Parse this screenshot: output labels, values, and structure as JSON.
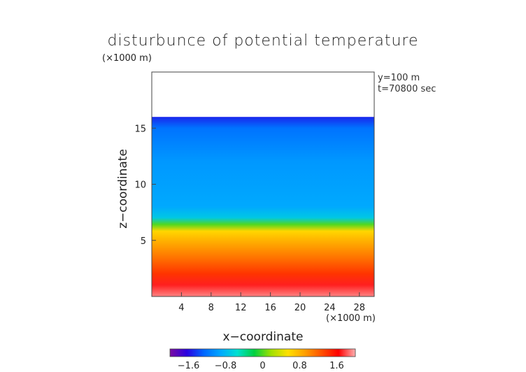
{
  "chart_data": {
    "type": "heatmap",
    "title": "disturbunce of potential temperature",
    "scale_note": "(×1000 m)",
    "xlabel": "x−coordinate",
    "xunit": "(×1000 m)",
    "ylabel": "z−coordinate",
    "annotations": [
      "y=100 m",
      "t=70800 sec"
    ],
    "xlim": [
      0,
      30
    ],
    "ylim": [
      0,
      20
    ],
    "x_ticks": [
      4,
      8,
      12,
      16,
      20,
      24,
      28
    ],
    "y_ticks": [
      5,
      10,
      15
    ],
    "data_top_z": 16.0,
    "colorbar": {
      "range": [
        -2.0,
        2.0
      ],
      "ticks": [
        -1.6,
        -0.8,
        0,
        0.8,
        1.6
      ],
      "tick_labels": [
        "−1.6",
        "−0.8",
        "0",
        "0.8",
        "1.6"
      ],
      "colormap": [
        "#7a0aa0",
        "#2a00e0",
        "#0066ff",
        "#00a8ff",
        "#00e0d0",
        "#00d040",
        "#a0e000",
        "#ffe000",
        "#ffa000",
        "#ff5000",
        "#ff0000",
        "#ffb0b0"
      ]
    },
    "profile": [
      {
        "z": 0.0,
        "value": 1.9
      },
      {
        "z": 1.0,
        "value": 1.7
      },
      {
        "z": 2.0,
        "value": 1.4
      },
      {
        "z": 3.5,
        "value": 1.1
      },
      {
        "z": 5.0,
        "value": 0.8
      },
      {
        "z": 5.8,
        "value": 0.6
      },
      {
        "z": 6.4,
        "value": 0.0
      },
      {
        "z": 7.0,
        "value": -0.7
      },
      {
        "z": 8.0,
        "value": -0.9
      },
      {
        "z": 12.0,
        "value": -1.0
      },
      {
        "z": 15.0,
        "value": -1.2
      },
      {
        "z": 16.0,
        "value": -1.5
      }
    ]
  }
}
